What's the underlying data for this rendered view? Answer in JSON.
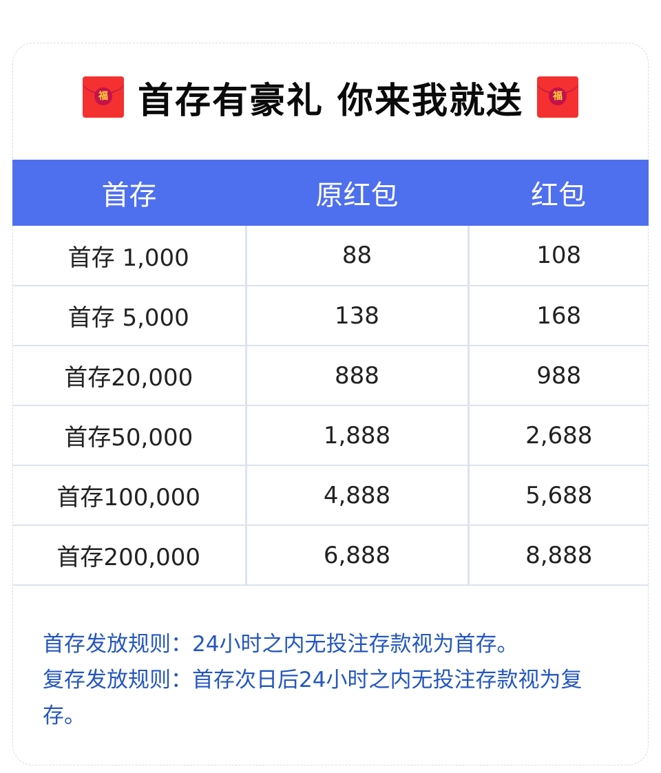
{
  "title": "首存有豪礼 你来我就送",
  "envelope_char": "福",
  "table": {
    "headers": [
      "首存",
      "原红包",
      "红包"
    ],
    "rows": [
      [
        "首存 1,000",
        "88",
        "108"
      ],
      [
        "首存 5,000",
        "138",
        "168"
      ],
      [
        "首存20,000",
        "888",
        "988"
      ],
      [
        "首存50,000",
        "1,888",
        "2,688"
      ],
      [
        "首存100,000",
        "4,888",
        "5,688"
      ],
      [
        "首存200,000",
        "6,888",
        "8,888"
      ]
    ]
  },
  "rules": [
    "首存发放规则：24小时之内无投注存款视为首存。",
    "复存发放规则：首存次日后24小时之内无投注存款视为复存。"
  ],
  "colors": {
    "header": "#4e6fee",
    "rules_text": "#2456c0",
    "envelope": "#f53030"
  }
}
